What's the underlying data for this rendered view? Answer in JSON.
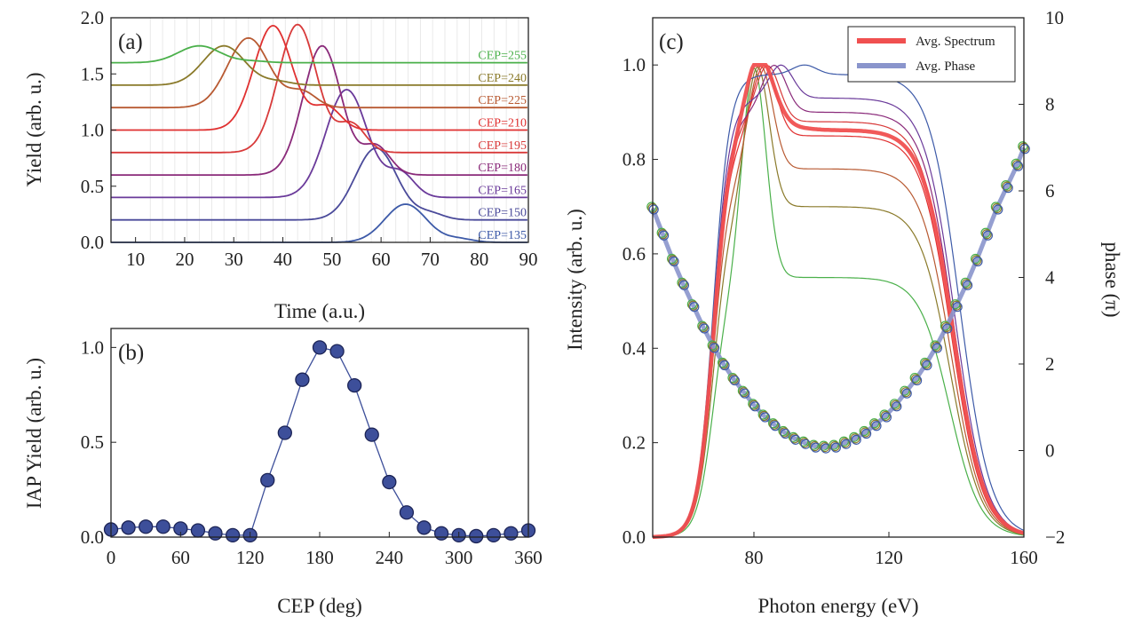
{
  "chart_data": [
    {
      "panel": "a",
      "label": "(a)",
      "type": "line",
      "xlabel": "Time (a.u.)",
      "ylabel": "Yield (arb. u.)",
      "xlim": [
        5,
        90
      ],
      "ylim": [
        0,
        2.0
      ],
      "xticks": [
        "10",
        "20",
        "30",
        "40",
        "50",
        "60",
        "70",
        "80",
        "90"
      ],
      "yticks": [
        "0.0",
        "0.5",
        "1.0",
        "1.5",
        "2.0"
      ],
      "series": [
        {
          "name": "CEP=135",
          "label": "CEP=135",
          "color": "#3d5aa8",
          "offset": 0.0,
          "peak_time": 65,
          "height": 0.34,
          "width": 6
        },
        {
          "name": "CEP=150",
          "label": "CEP=150",
          "color": "#4a4a9a",
          "offset": 0.2,
          "peak_time": 59,
          "height": 0.64,
          "width": 6
        },
        {
          "name": "CEP=165",
          "label": "CEP=165",
          "color": "#6a3a9a",
          "offset": 0.4,
          "peak_time": 53,
          "height": 0.96,
          "width": 6
        },
        {
          "name": "CEP=180",
          "label": "CEP=180",
          "color": "#8a2a7a",
          "offset": 0.6,
          "peak_time": 48,
          "height": 1.15,
          "width": 5.5
        },
        {
          "name": "CEP=195",
          "label": "CEP=195",
          "color": "#d83a3a",
          "offset": 0.8,
          "peak_time": 43,
          "height": 1.14,
          "width": 5.5
        },
        {
          "name": "CEP=210",
          "label": "CEP=210",
          "color": "#e03030",
          "offset": 1.0,
          "peak_time": 38,
          "height": 0.93,
          "width": 5.5
        },
        {
          "name": "CEP=225",
          "label": "CEP=225",
          "color": "#b85a32",
          "offset": 1.2,
          "peak_time": 33,
          "height": 0.62,
          "width": 6
        },
        {
          "name": "CEP=240",
          "label": "CEP=240",
          "color": "#8a7a2a",
          "offset": 1.4,
          "peak_time": 28,
          "height": 0.35,
          "width": 6
        },
        {
          "name": "CEP=255",
          "label": "CEP=255",
          "color": "#4ab04a",
          "offset": 1.6,
          "peak_time": 23,
          "height": 0.15,
          "width": 6
        }
      ]
    },
    {
      "panel": "b",
      "label": "(b)",
      "type": "scatter",
      "xlabel": "CEP (deg)",
      "ylabel": "IAP Yield (arb. u.)",
      "xlim": [
        0,
        360
      ],
      "ylim": [
        0,
        1.1
      ],
      "xticks": [
        "0",
        "60",
        "120",
        "180",
        "240",
        "300",
        "360"
      ],
      "yticks": [
        "0.0",
        "0.5",
        "1.0"
      ],
      "x": [
        0,
        15,
        30,
        45,
        60,
        75,
        90,
        105,
        120,
        135,
        150,
        165,
        180,
        195,
        210,
        225,
        240,
        255,
        270,
        285,
        300,
        315,
        330,
        345,
        360
      ],
      "y": [
        0.04,
        0.05,
        0.055,
        0.055,
        0.045,
        0.035,
        0.02,
        0.01,
        0.01,
        0.3,
        0.55,
        0.83,
        1.0,
        0.98,
        0.8,
        0.54,
        0.29,
        0.13,
        0.05,
        0.02,
        0.01,
        0.005,
        0.01,
        0.02,
        0.035
      ]
    },
    {
      "panel": "c",
      "label": "(c)",
      "type": "line",
      "xlabel": "Photon energy (eV)",
      "ylabel": "Intensity (arb. u.)",
      "y2label": "phase (π)",
      "xlim": [
        50,
        160
      ],
      "ylim": [
        0,
        1.1
      ],
      "y2lim": [
        -2,
        10
      ],
      "xticks": [
        "80",
        "120",
        "160"
      ],
      "yticks": [
        "0.0",
        "0.2",
        "0.4",
        "0.6",
        "0.8",
        "1.0"
      ],
      "y2ticks": [
        "−2",
        "0",
        "2",
        "4",
        "6",
        "8",
        "10"
      ],
      "legend": [
        "Avg. Spectrum",
        "Avg. Phase"
      ],
      "legend_position": "top-right",
      "avg_spectrum_color": "#f05050",
      "avg_phase_color": "#8a95cc",
      "phase_x": [
        50,
        53,
        56,
        59,
        62,
        65,
        68,
        71,
        74,
        77,
        80,
        83,
        86,
        89,
        92,
        95,
        98,
        101,
        104,
        107,
        110,
        113,
        116,
        119,
        122,
        125,
        128,
        131,
        134,
        137,
        140,
        143,
        146,
        149,
        152,
        155,
        158,
        160
      ],
      "phase_y": [
        5.6,
        5.0,
        4.4,
        3.85,
        3.35,
        2.85,
        2.4,
        2.0,
        1.65,
        1.35,
        1.05,
        0.8,
        0.6,
        0.42,
        0.28,
        0.18,
        0.1,
        0.08,
        0.1,
        0.18,
        0.28,
        0.42,
        0.6,
        0.8,
        1.05,
        1.35,
        1.65,
        2.0,
        2.4,
        2.85,
        3.35,
        3.85,
        4.4,
        5.0,
        5.6,
        6.1,
        6.6,
        7.0
      ],
      "spectra": [
        {
          "color": "#4ab04a",
          "peak": 80,
          "shoulder": 0.55
        },
        {
          "color": "#8a7a2a",
          "peak": 81,
          "shoulder": 0.7
        },
        {
          "color": "#b85a32",
          "peak": 82,
          "shoulder": 0.78
        },
        {
          "color": "#e03030",
          "peak": 83,
          "shoulder": 0.85
        },
        {
          "color": "#d83a3a",
          "peak": 84,
          "shoulder": 0.88
        },
        {
          "color": "#8a2a7a",
          "peak": 86,
          "shoulder": 0.9
        },
        {
          "color": "#6a3a9a",
          "peak": 88,
          "shoulder": 0.93
        },
        {
          "color": "#3d5aa8",
          "peak": 95,
          "shoulder": 0.98
        }
      ]
    }
  ]
}
